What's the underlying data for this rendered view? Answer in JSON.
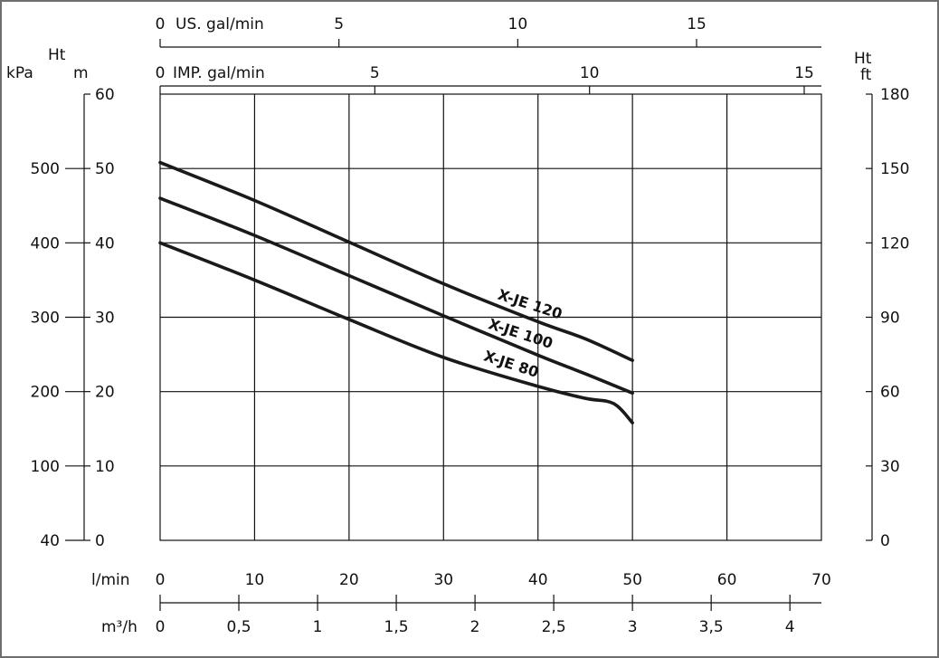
{
  "chart_data": {
    "type": "line",
    "title": "",
    "x": {
      "label": "l/min",
      "range": [
        0,
        70
      ],
      "ticks": [
        "0",
        "10",
        "20",
        "30",
        "40",
        "50",
        "60",
        "70"
      ],
      "grid": true
    },
    "secondary_x_axes": [
      {
        "label": "m³/h",
        "range": [
          0,
          4.2
        ],
        "ticks": [
          "0",
          "0,5",
          "1",
          "1,5",
          "2",
          "2,5",
          "3",
          "3,5",
          "4"
        ],
        "tick_values": [
          0,
          0.5,
          1,
          1.5,
          2,
          2.5,
          3,
          3.5,
          4
        ]
      },
      {
        "label": "US. gal/min",
        "range": [
          0,
          18.49
        ],
        "ticks": [
          "0",
          "5",
          "10",
          "15"
        ],
        "tick_values": [
          0,
          5,
          10,
          15
        ]
      },
      {
        "label": "IMP. gal/min",
        "range": [
          0,
          15.4
        ],
        "ticks": [
          "0",
          "5",
          "10",
          "15"
        ],
        "tick_values": [
          0,
          5,
          10,
          15
        ]
      }
    ],
    "y": {
      "label_top": "Ht",
      "label": "m",
      "range": [
        0,
        60
      ],
      "ticks": [
        "0",
        "10",
        "20",
        "30",
        "40",
        "50",
        "60"
      ],
      "grid": true
    },
    "secondary_y_axes": [
      {
        "label": "kPa",
        "side": "left",
        "ticks": [
          "40",
          "100",
          "200",
          "300",
          "400",
          "500"
        ],
        "tick_at_m": [
          0,
          10,
          20,
          30,
          40,
          50
        ]
      },
      {
        "label_top": "Ht",
        "label": "ft",
        "side": "right",
        "ticks": [
          "0",
          "30",
          "60",
          "90",
          "120",
          "150",
          "180"
        ],
        "tick_at_m": [
          0,
          10,
          20,
          30,
          40,
          50,
          60
        ]
      }
    ],
    "series": [
      {
        "name": "X-JE 120",
        "x": [
          0,
          10,
          20,
          30,
          40,
          45,
          50
        ],
        "y": [
          50.8,
          45.7,
          40.1,
          34.5,
          29.4,
          27.1,
          24.2
        ]
      },
      {
        "name": "X-JE 100",
        "x": [
          0,
          10,
          20,
          30,
          40,
          45,
          50
        ],
        "y": [
          46,
          41,
          35.6,
          30.2,
          24.9,
          22.4,
          19.8
        ]
      },
      {
        "name": "X-JE 80",
        "x": [
          0,
          10,
          20,
          30,
          40,
          45,
          48,
          50
        ],
        "y": [
          40,
          35,
          29.7,
          24.6,
          20.7,
          19.1,
          18.4,
          15.8
        ]
      }
    ]
  }
}
